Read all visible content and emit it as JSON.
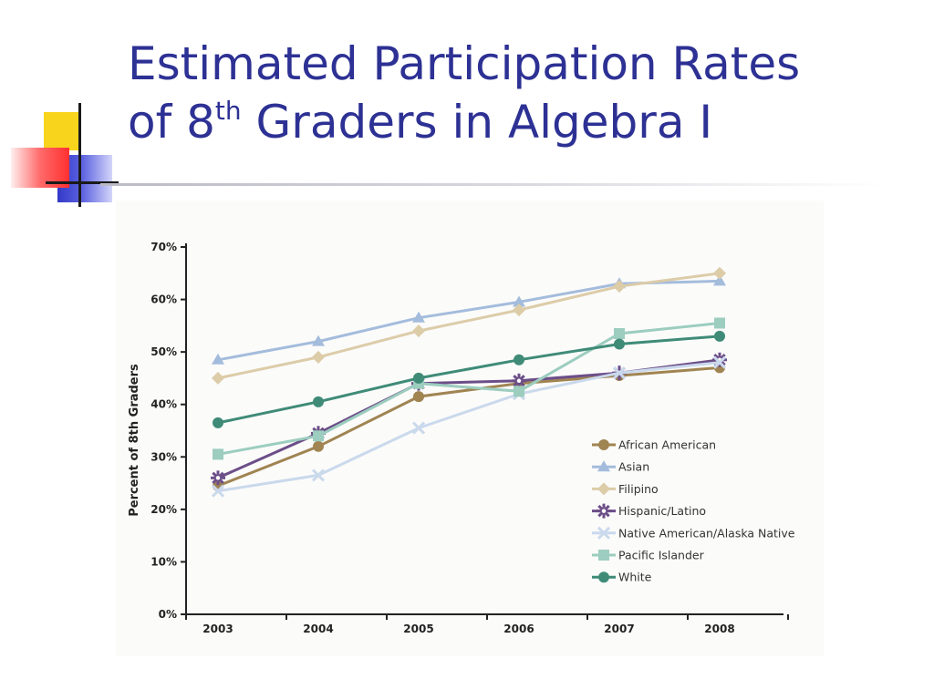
{
  "slide": {
    "title_line1": "Estimated Participation Rates",
    "title_line2_pre": "of 8",
    "title_line2_sup": "th",
    "title_line2_post": " Graders in Algebra I",
    "title_color": "#2d3194"
  },
  "chart_data": {
    "type": "line",
    "title": "",
    "xlabel": "",
    "ylabel": "Percent of 8th Graders",
    "x": [
      "2003",
      "2004",
      "2005",
      "2006",
      "2007",
      "2008"
    ],
    "ylim": [
      0,
      70
    ],
    "yticks": [
      "0%",
      "10%",
      "20%",
      "30%",
      "40%",
      "50%",
      "60%",
      "70%"
    ],
    "grid": false,
    "legend_position": "lower-right",
    "series": [
      {
        "name": "African American",
        "values": [
          24.5,
          32,
          41.5,
          44,
          45.5,
          47
        ],
        "color": "#a08452",
        "marker": "circle"
      },
      {
        "name": "Asian",
        "values": [
          48.5,
          52,
          56.5,
          59.5,
          63,
          63.5
        ],
        "color": "#a4bcdc",
        "marker": "triangle"
      },
      {
        "name": "Filipino",
        "values": [
          45,
          49,
          54,
          58,
          62.5,
          65
        ],
        "color": "#dccca8",
        "marker": "diamond"
      },
      {
        "name": "Hispanic/Latino",
        "values": [
          26,
          34.5,
          44,
          44.5,
          46,
          48.5
        ],
        "color": "#6c4e88",
        "marker": "asterisk"
      },
      {
        "name": "Native American/Alaska Native",
        "values": [
          23.5,
          26.5,
          35.5,
          42,
          46,
          48
        ],
        "color": "#cad9ec",
        "marker": "x"
      },
      {
        "name": "Pacific Islander",
        "values": [
          30.5,
          34,
          44,
          42.5,
          53.5,
          55.5
        ],
        "color": "#9ccdbf",
        "marker": "square"
      },
      {
        "name": "White",
        "values": [
          36.5,
          40.5,
          45,
          48.5,
          51.5,
          53
        ],
        "color": "#3f8b77",
        "marker": "circle"
      }
    ]
  }
}
